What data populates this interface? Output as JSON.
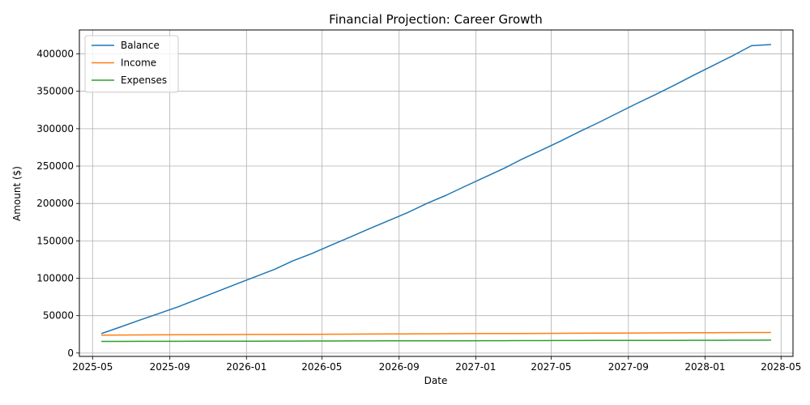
{
  "chart_data": {
    "type": "line",
    "title": "Financial Projection: Career Growth",
    "xlabel": "Date",
    "ylabel": "Amount ($)",
    "x_range": [
      "2025-04-10",
      "2028-05-20"
    ],
    "ylim": [
      -4500,
      432000
    ],
    "grid": true,
    "legend_position": "top-left",
    "x_ticks": [
      "2025-05",
      "2025-09",
      "2026-01",
      "2026-05",
      "2026-09",
      "2027-01",
      "2027-05",
      "2027-09",
      "2028-01",
      "2028-05"
    ],
    "y_ticks": [
      0,
      50000,
      100000,
      150000,
      200000,
      250000,
      300000,
      350000,
      400000
    ],
    "x": [
      "2025-05-15",
      "2025-06-15",
      "2025-07-15",
      "2025-08-15",
      "2025-09-15",
      "2025-10-15",
      "2025-11-15",
      "2025-12-15",
      "2026-01-15",
      "2026-02-15",
      "2026-03-15",
      "2026-04-15",
      "2026-05-15",
      "2026-06-15",
      "2026-07-15",
      "2026-08-15",
      "2026-09-15",
      "2026-10-15",
      "2026-11-15",
      "2026-12-15",
      "2027-01-15",
      "2027-02-15",
      "2027-03-15",
      "2027-04-15",
      "2027-05-15",
      "2027-06-15",
      "2027-07-15",
      "2027-08-15",
      "2027-09-15",
      "2027-10-15",
      "2027-11-15",
      "2027-12-15",
      "2028-01-15",
      "2028-02-15",
      "2028-03-15",
      "2028-04-15"
    ],
    "series": [
      {
        "name": "Balance",
        "color": "#1f77b4",
        "values": [
          26000,
          35000,
          44000,
          53000,
          62000,
          72000,
          82000,
          92000,
          102000,
          112000,
          123000,
          133000,
          144000,
          155000,
          166000,
          177000,
          188000,
          200000,
          211000,
          223000,
          235000,
          247000,
          259000,
          271000,
          283000,
          296000,
          308000,
          321000,
          334000,
          346000,
          359000,
          372000,
          385000,
          398000,
          411000,
          412500
        ]
      },
      {
        "name": "Income",
        "color": "#ff7f0e",
        "values": [
          24000,
          24100,
          24200,
          24300,
          24400,
          24500,
          24600,
          24700,
          24800,
          24900,
          25000,
          25100,
          25200,
          25300,
          25400,
          25500,
          25600,
          25700,
          25800,
          25900,
          26000,
          26100,
          26200,
          26300,
          26400,
          26500,
          26600,
          26700,
          26800,
          26900,
          27000,
          27100,
          27200,
          27300,
          27400,
          27500
        ]
      },
      {
        "name": "Expenses",
        "color": "#2ca02c",
        "values": [
          15500,
          15550,
          15600,
          15650,
          15700,
          15750,
          15800,
          15850,
          15900,
          15950,
          16000,
          16050,
          16100,
          16150,
          16200,
          16250,
          16300,
          16350,
          16400,
          16450,
          16500,
          16550,
          16600,
          16650,
          16700,
          16750,
          16800,
          16850,
          16900,
          16950,
          17000,
          17050,
          17100,
          17150,
          17200,
          17250
        ]
      }
    ]
  }
}
